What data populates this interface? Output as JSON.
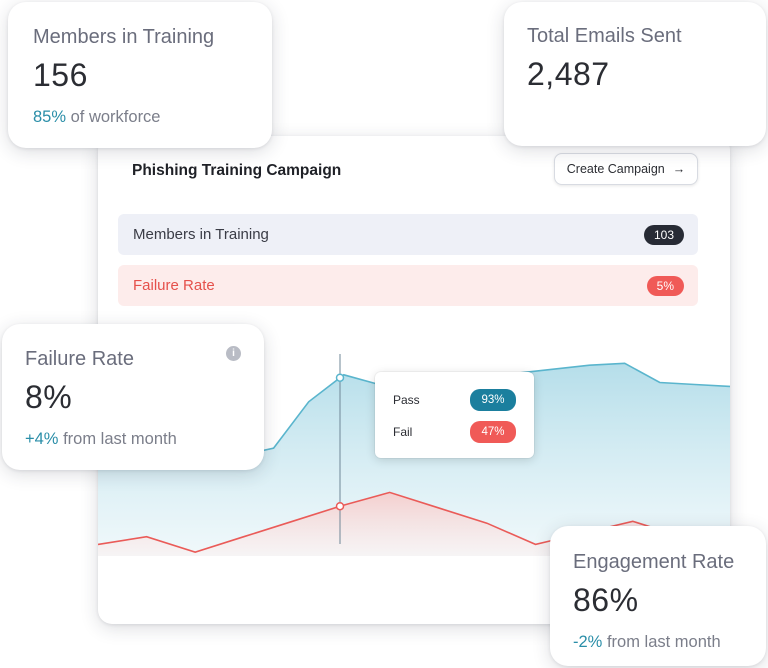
{
  "cards": {
    "members": {
      "label": "Members in Training",
      "value": "156",
      "sub_accent": "85%",
      "sub_text": "of workforce"
    },
    "emails": {
      "label": "Total Emails Sent",
      "value": "2,487"
    },
    "failure": {
      "label": "Failure Rate",
      "value": "8%",
      "sub_accent": "+4%",
      "sub_text": "from last month",
      "info_icon": "info-icon",
      "info_glyph": "i"
    },
    "engagement": {
      "label": "Engagement Rate",
      "value": "86%",
      "sub_accent": "-2%",
      "sub_text": "from last month"
    }
  },
  "panel": {
    "title": "Phishing Training Campaign",
    "create_button": "Create Campaign",
    "create_icon": "arrow-right-icon",
    "arrow_glyph": "→",
    "rows": [
      {
        "label": "Members in Training",
        "badge": "103"
      },
      {
        "label": "Failure Rate",
        "badge": "5%"
      }
    ],
    "tooltip": {
      "pass_label": "Pass",
      "pass_value": "93%",
      "fail_label": "Fail",
      "fail_value": "47%"
    }
  },
  "colors": {
    "accent_teal": "#2a8ea8",
    "pass_line": "#5ab5cd",
    "fail_line": "#ea5b58",
    "pill_dark": "#272b35",
    "pill_red": "#f05a57"
  },
  "chart_data": {
    "type": "area",
    "series": [
      {
        "values": [
          60,
          56,
          55,
          54,
          52,
          56,
          80,
          94,
          89,
          90,
          91,
          93,
          95,
          97,
          99,
          100,
          90,
          89,
          88
        ]
      },
      {
        "values": [
          6,
          10,
          2,
          10,
          18,
          26,
          33,
          25,
          17,
          6,
          12,
          18,
          10,
          13
        ]
      }
    ],
    "ylim": [
      0,
      110
    ]
  }
}
